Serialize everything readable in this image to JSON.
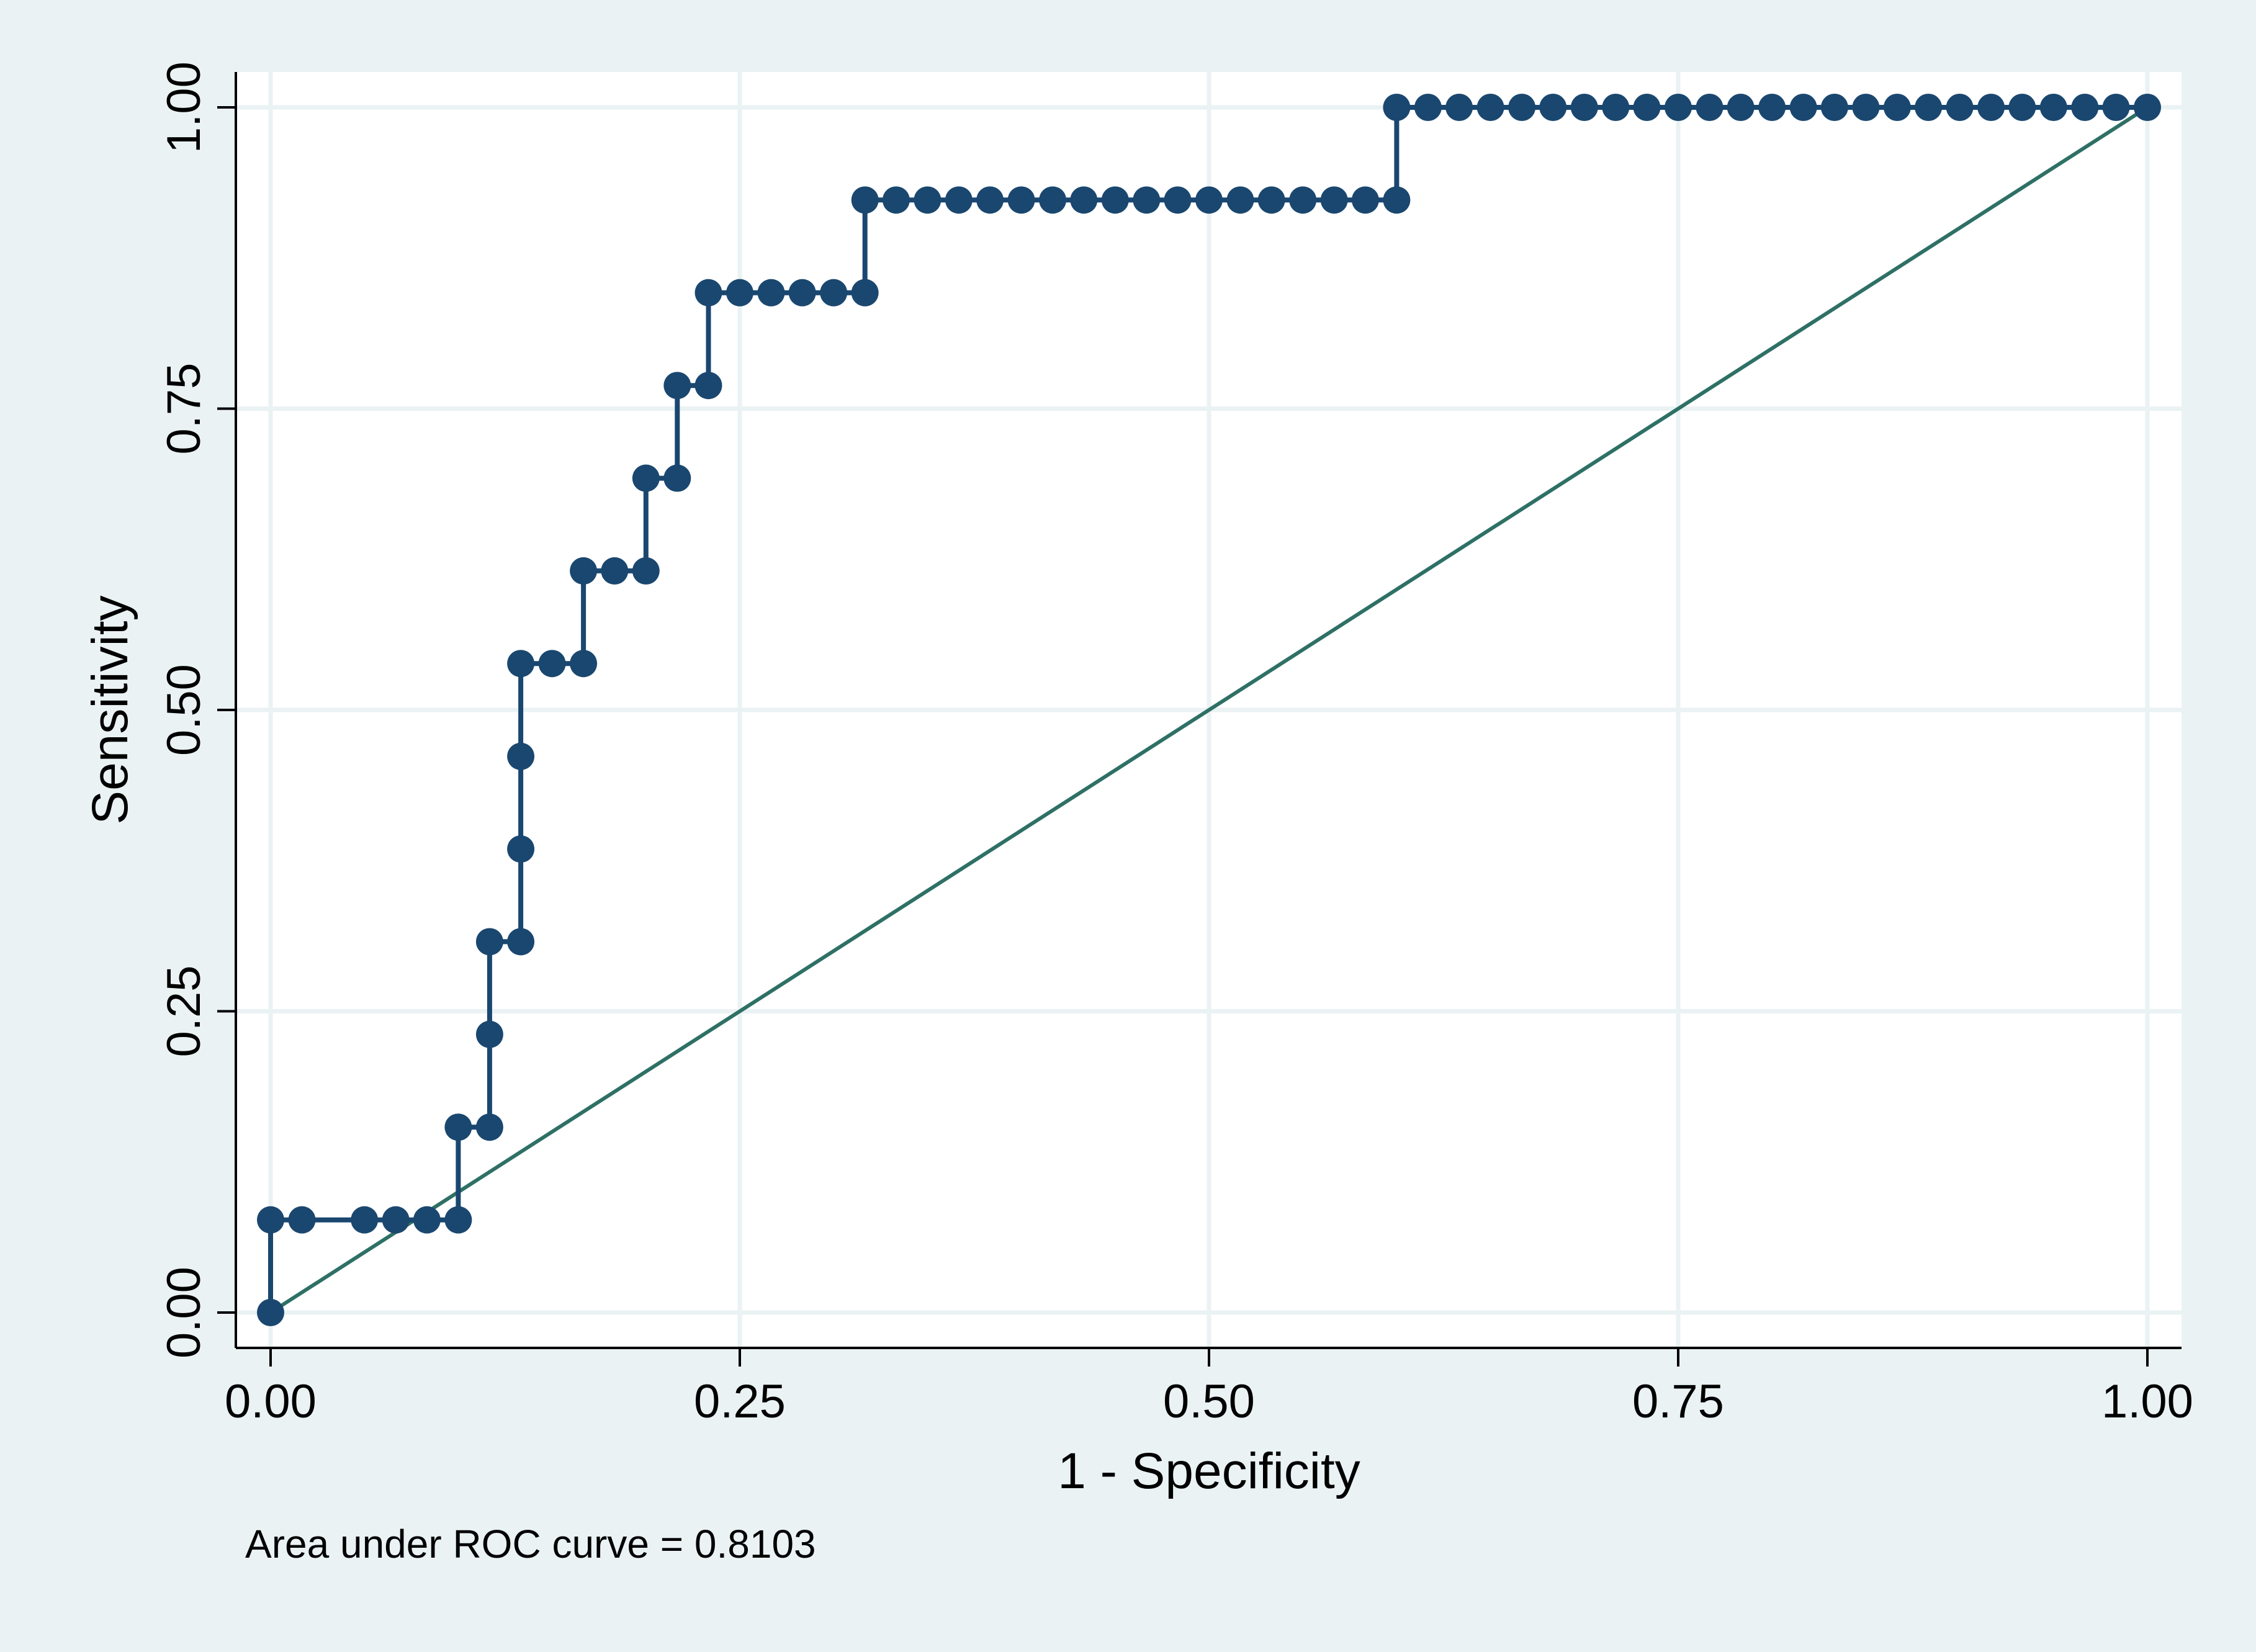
{
  "colors": {
    "outer_background": "#eaf2f3",
    "plot_background": "#ffffff",
    "gridline": "#eaf2f3",
    "roc_series": "#1a476f",
    "reference_line": "#2e7065",
    "axis": "#000000"
  },
  "chart_data": {
    "type": "line",
    "title": "",
    "xlabel": "1 - Specificity",
    "ylabel": "Sensitivity",
    "xlim": [
      0,
      1
    ],
    "ylim": [
      0,
      1
    ],
    "xticks": [
      "0.00",
      "0.25",
      "0.50",
      "0.75",
      "1.00"
    ],
    "yticks": [
      "0.00",
      "0.25",
      "0.50",
      "0.75",
      "1.00"
    ],
    "grid": true,
    "note": "Area under ROC curve = 0.8103",
    "series": [
      {
        "marker": "circle",
        "x": [
          0.0,
          0.0,
          0.0167,
          0.05,
          0.0667,
          0.0833,
          0.1,
          0.1,
          0.1167,
          0.1167,
          0.1167,
          0.1333,
          0.1333,
          0.1333,
          0.1333,
          0.15,
          0.1667,
          0.1667,
          0.1833,
          0.2,
          0.2,
          0.2167,
          0.2167,
          0.2333,
          0.2333,
          0.25,
          0.2667,
          0.2833,
          0.3,
          0.3167,
          0.3167,
          0.3333,
          0.35,
          0.3667,
          0.3833,
          0.4,
          0.4167,
          0.4333,
          0.45,
          0.4667,
          0.4833,
          0.5,
          0.5167,
          0.5333,
          0.55,
          0.5667,
          0.5833,
          0.6,
          0.6,
          0.6167,
          0.6333,
          0.65,
          0.6667,
          0.6833,
          0.7,
          0.7167,
          0.7333,
          0.75,
          0.7667,
          0.7833,
          0.8,
          0.8167,
          0.8333,
          0.85,
          0.8667,
          0.8833,
          0.9,
          0.9167,
          0.9333,
          0.95,
          0.9667,
          0.9833,
          1.0
        ],
        "y": [
          0.0,
          0.0769,
          0.0769,
          0.0769,
          0.0769,
          0.0769,
          0.0769,
          0.1538,
          0.1538,
          0.2308,
          0.3077,
          0.3077,
          0.3846,
          0.4615,
          0.5385,
          0.5385,
          0.5385,
          0.6154,
          0.6154,
          0.6154,
          0.6923,
          0.6923,
          0.7692,
          0.7692,
          0.8462,
          0.8462,
          0.8462,
          0.8462,
          0.8462,
          0.8462,
          0.9231,
          0.9231,
          0.9231,
          0.9231,
          0.9231,
          0.9231,
          0.9231,
          0.9231,
          0.9231,
          0.9231,
          0.9231,
          0.9231,
          0.9231,
          0.9231,
          0.9231,
          0.9231,
          0.9231,
          0.9231,
          1.0,
          1.0,
          1.0,
          1.0,
          1.0,
          1.0,
          1.0,
          1.0,
          1.0,
          1.0,
          1.0,
          1.0,
          1.0,
          1.0,
          1.0,
          1.0,
          1.0,
          1.0,
          1.0,
          1.0,
          1.0,
          1.0,
          1.0,
          1.0,
          1.0
        ]
      },
      {
        "style": "reference",
        "x": [
          0,
          1
        ],
        "y": [
          0,
          1
        ]
      }
    ]
  }
}
